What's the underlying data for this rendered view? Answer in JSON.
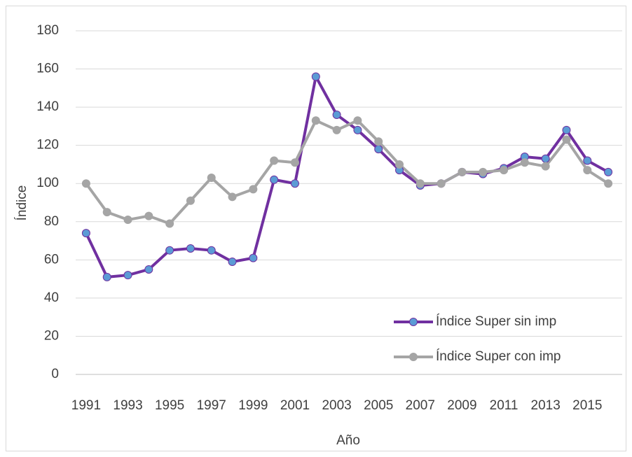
{
  "chart_data": {
    "type": "line",
    "x_label": "Año",
    "y_label": "Índice",
    "x": [
      1991,
      1992,
      1993,
      1994,
      1995,
      1996,
      1997,
      1998,
      1999,
      2000,
      2001,
      2002,
      2003,
      2004,
      2005,
      2006,
      2007,
      2008,
      2009,
      2010,
      2011,
      2012,
      2013,
      2014,
      2015,
      2016
    ],
    "xlim": [
      1990.5,
      2016.5
    ],
    "xticks": [
      1991,
      1993,
      1995,
      1997,
      1999,
      2001,
      2003,
      2005,
      2007,
      2009,
      2011,
      2013,
      2015
    ],
    "ylim": [
      0,
      180
    ],
    "yticks": [
      0,
      20,
      40,
      60,
      80,
      100,
      120,
      140,
      160,
      180
    ],
    "grid": true,
    "legend": "lower right",
    "series": [
      {
        "name": "Índice Super sin imp",
        "color": "#7030a0",
        "marker_color": "#5b9bd5",
        "values": [
          74,
          51,
          52,
          55,
          65,
          66,
          65,
          59,
          61,
          102,
          100,
          156,
          136,
          128,
          118,
          107,
          99,
          100,
          106,
          105,
          108,
          114,
          113,
          128,
          112,
          106
        ]
      },
      {
        "name": "Índice Super con imp",
        "color": "#a5a5a5",
        "marker_color": "#a5a5a5",
        "values": [
          100,
          85,
          81,
          83,
          79,
          91,
          103,
          93,
          97,
          112,
          111,
          133,
          128,
          133,
          122,
          110,
          100,
          100,
          106,
          106,
          107,
          111,
          109,
          123,
          107,
          100
        ]
      }
    ]
  }
}
